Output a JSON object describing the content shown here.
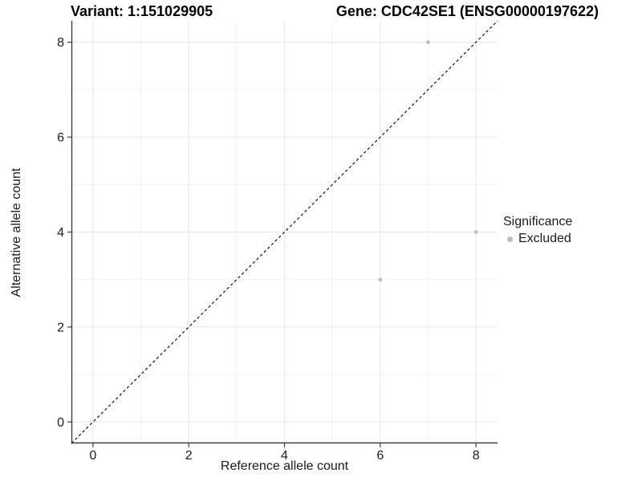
{
  "figure": {
    "title_left": "Variant: 1:151029905",
    "title_right": "Gene: CDC42SE1 (ENSG00000197622)"
  },
  "chart_data": {
    "type": "scatter",
    "xlabel": "Reference allele count",
    "ylabel": "Alternative allele count",
    "xlim": [
      -0.45,
      8.45
    ],
    "ylim": [
      -0.45,
      8.45
    ],
    "x_major_ticks": [
      0,
      2,
      4,
      6,
      8
    ],
    "y_major_ticks": [
      0,
      2,
      4,
      6,
      8
    ],
    "x_minor_gridlines": [
      1,
      3,
      5,
      7
    ],
    "y_minor_gridlines": [
      1,
      3,
      5,
      7
    ],
    "grid": "on",
    "legend_position": "right",
    "series": [
      {
        "name": "Excluded",
        "color": "#bdbdbd",
        "points": [
          {
            "x": 7,
            "y": 8
          },
          {
            "x": 8,
            "y": 4
          },
          {
            "x": 6,
            "y": 3
          }
        ]
      }
    ],
    "reference_line": {
      "kind": "identity y=x",
      "style": "dashed",
      "color": "#000000"
    },
    "legend": {
      "title": "Significance",
      "entries": [
        {
          "label": "Excluded",
          "color": "#bdbdbd"
        }
      ]
    },
    "colors": {
      "panel_background": "#ffffff",
      "grid_major": "#e6e6e6",
      "grid_minor": "#f0f0f0",
      "axis_line": "#404040",
      "tick_mark": "#404040",
      "axis_text": "#1a1a1a"
    }
  }
}
